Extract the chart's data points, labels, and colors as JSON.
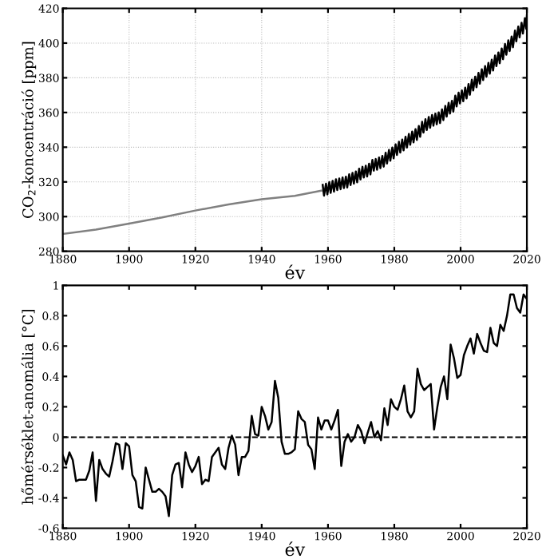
{
  "chart_data": [
    {
      "type": "line",
      "xlabel": "év",
      "ylabel": "CO$_{2}$-koncentráció [ppm]",
      "xlim": [
        1880,
        2020
      ],
      "ylim": [
        280,
        420
      ],
      "xticks": [
        1880,
        1900,
        1920,
        1940,
        1960,
        1980,
        2000,
        2020
      ],
      "yticks": [
        280,
        300,
        320,
        340,
        360,
        380,
        400,
        420
      ],
      "grid": true,
      "legend": false,
      "line_style": "solid",
      "series": [
        {
          "color": "#808080",
          "x": [
            1880,
            1890,
            1900,
            1910,
            1920,
            1930,
            1940,
            1950,
            1958
          ],
          "values": [
            290,
            292.5,
            296,
            299.5,
            303.5,
            307,
            310,
            312,
            315
          ]
        },
        {
          "color": "#000000",
          "x": [
            1958.4,
            1958.8,
            1959.4,
            1959.8,
            1960.4,
            1960.8,
            1961.4,
            1961.8,
            1962.4,
            1962.8,
            1963.4,
            1963.8,
            1964.4,
            1964.8,
            1965.4,
            1965.8,
            1966.4,
            1966.8,
            1967.4,
            1967.8,
            1968.4,
            1968.8,
            1969.4,
            1969.8,
            1970.4,
            1970.8,
            1971.4,
            1971.8,
            1972.4,
            1972.8,
            1973.4,
            1973.8,
            1974.4,
            1974.8,
            1975.4,
            1975.8,
            1976.4,
            1976.8,
            1977.4,
            1977.8,
            1978.4,
            1978.8,
            1979.4,
            1979.8,
            1980.4,
            1980.8,
            1981.4,
            1981.8,
            1982.4,
            1982.8,
            1983.4,
            1983.8,
            1984.4,
            1984.8,
            1985.4,
            1985.8,
            1986.4,
            1986.8,
            1987.4,
            1987.8,
            1988.4,
            1988.8,
            1989.4,
            1989.8,
            1990.4,
            1990.8,
            1991.4,
            1991.8,
            1992.4,
            1992.8,
            1993.4,
            1993.8,
            1994.4,
            1994.8,
            1995.4,
            1995.8,
            1996.4,
            1996.8,
            1997.4,
            1997.8,
            1998.4,
            1998.8,
            1999.4,
            1999.8,
            2000.4,
            2000.8,
            2001.4,
            2001.8,
            2002.4,
            2002.8,
            2003.4,
            2003.8,
            2004.4,
            2004.8,
            2005.4,
            2005.8,
            2006.4,
            2006.8,
            2007.4,
            2007.8,
            2008.4,
            2008.8,
            2009.4,
            2009.8,
            2010.4,
            2010.8,
            2011.4,
            2011.8,
            2012.4,
            2012.8,
            2013.4,
            2013.8,
            2014.4,
            2014.8,
            2015.4,
            2015.8,
            2016.4,
            2016.8,
            2017.4,
            2017.8,
            2018.4,
            2018.8,
            2019.4,
            2019.8,
            2020
          ],
          "values": [
            318.3,
            312.1,
            319.0,
            312.8,
            319.9,
            313.7,
            320.6,
            314.4,
            321.5,
            315.3,
            322.0,
            315.8,
            322.6,
            316.4,
            323.0,
            316.8,
            324.4,
            318.2,
            325.2,
            319.0,
            326.0,
            319.8,
            327.6,
            321.4,
            328.7,
            322.5,
            329.3,
            323.1,
            330.5,
            324.3,
            332.7,
            326.5,
            333.2,
            327.0,
            334.1,
            327.9,
            335.0,
            328.8,
            336.8,
            330.6,
            338.4,
            332.2,
            339.8,
            333.6,
            341.7,
            335.5,
            343.1,
            336.9,
            344.4,
            338.2,
            346.0,
            339.8,
            347.6,
            341.4,
            349.0,
            342.8,
            350.4,
            344.2,
            352.2,
            346.0,
            354.6,
            348.4,
            356.1,
            349.9,
            357.4,
            351.2,
            358.6,
            352.4,
            359.4,
            353.2,
            360.1,
            353.9,
            361.8,
            355.6,
            363.8,
            357.6,
            365.6,
            359.4,
            366.7,
            360.5,
            369.7,
            363.5,
            371.4,
            365.2,
            372.7,
            366.5,
            374.3,
            368.1,
            376.4,
            370.2,
            378.9,
            372.7,
            380.7,
            374.5,
            382.8,
            376.6,
            384.9,
            378.7,
            386.8,
            380.6,
            388.6,
            382.4,
            390.4,
            384.2,
            392.9,
            386.7,
            394.6,
            388.4,
            396.9,
            390.7,
            399.5,
            393.3,
            401.6,
            395.4,
            403.8,
            397.6,
            407.2,
            401.0,
            409.5,
            403.3,
            411.7,
            405.5,
            414.4,
            408.2,
            416
          ]
        }
      ]
    },
    {
      "type": "line",
      "xlabel": "év",
      "ylabel": "hőmérséklet-anomália [°C]",
      "xlim": [
        1880,
        2020
      ],
      "ylim": [
        -0.6,
        1
      ],
      "xticks": [
        1880,
        1900,
        1920,
        1940,
        1960,
        1980,
        2000,
        2020
      ],
      "yticks": [
        -0.6,
        -0.4,
        -0.2,
        0,
        0.2,
        0.4,
        0.6,
        0.8,
        1
      ],
      "grid": false,
      "legend": false,
      "line_style": "solid",
      "ref_lines": [
        {
          "axis": "y",
          "value": 0,
          "color": "#000000",
          "line_style": "dashed"
        }
      ],
      "series": [
        {
          "color": "#000000",
          "x": [
            1880,
            1881,
            1882,
            1883,
            1884,
            1885,
            1886,
            1887,
            1888,
            1889,
            1890,
            1891,
            1892,
            1893,
            1894,
            1895,
            1896,
            1897,
            1898,
            1899,
            1900,
            1901,
            1902,
            1903,
            1904,
            1905,
            1906,
            1907,
            1908,
            1909,
            1910,
            1911,
            1912,
            1913,
            1914,
            1915,
            1916,
            1917,
            1918,
            1919,
            1920,
            1921,
            1922,
            1923,
            1924,
            1925,
            1926,
            1927,
            1928,
            1929,
            1930,
            1931,
            1932,
            1933,
            1934,
            1935,
            1936,
            1937,
            1938,
            1939,
            1940,
            1941,
            1942,
            1943,
            1944,
            1945,
            1946,
            1947,
            1948,
            1949,
            1950,
            1951,
            1952,
            1953,
            1954,
            1955,
            1956,
            1957,
            1958,
            1959,
            1960,
            1961,
            1962,
            1963,
            1964,
            1965,
            1966,
            1967,
            1968,
            1969,
            1970,
            1971,
            1972,
            1973,
            1974,
            1975,
            1976,
            1977,
            1978,
            1979,
            1980,
            1981,
            1982,
            1983,
            1984,
            1985,
            1986,
            1987,
            1988,
            1989,
            1990,
            1991,
            1992,
            1993,
            1994,
            1995,
            1996,
            1997,
            1998,
            1999,
            2000,
            2001,
            2002,
            2003,
            2004,
            2005,
            2006,
            2007,
            2008,
            2009,
            2010,
            2011,
            2012,
            2013,
            2014,
            2015,
            2016,
            2017,
            2018,
            2019,
            2020
          ],
          "values": [
            -0.12,
            -0.18,
            -0.1,
            -0.15,
            -0.29,
            -0.28,
            -0.28,
            -0.28,
            -0.22,
            -0.1,
            -0.42,
            -0.15,
            -0.21,
            -0.24,
            -0.26,
            -0.16,
            -0.04,
            -0.05,
            -0.21,
            -0.04,
            -0.06,
            -0.25,
            -0.29,
            -0.46,
            -0.47,
            -0.2,
            -0.28,
            -0.36,
            -0.36,
            -0.34,
            -0.36,
            -0.39,
            -0.52,
            -0.25,
            -0.18,
            -0.17,
            -0.33,
            -0.1,
            -0.18,
            -0.23,
            -0.19,
            -0.13,
            -0.31,
            -0.28,
            -0.29,
            -0.13,
            -0.1,
            -0.07,
            -0.18,
            -0.21,
            -0.07,
            0.01,
            -0.05,
            -0.25,
            -0.13,
            -0.13,
            -0.09,
            0.14,
            0.02,
            0.01,
            0.2,
            0.14,
            0.05,
            0.1,
            0.37,
            0.26,
            -0.03,
            -0.11,
            -0.11,
            -0.1,
            -0.08,
            0.17,
            0.12,
            0.1,
            -0.05,
            -0.08,
            -0.21,
            0.13,
            0.05,
            0.11,
            0.11,
            0.05,
            0.11,
            0.18,
            -0.19,
            -0.03,
            0.02,
            -0.03,
            0.0,
            0.08,
            0.04,
            -0.04,
            0.03,
            0.1,
            0.0,
            0.04,
            -0.02,
            0.19,
            0.08,
            0.25,
            0.2,
            0.18,
            0.25,
            0.34,
            0.17,
            0.13,
            0.17,
            0.45,
            0.35,
            0.31,
            0.33,
            0.35,
            0.05,
            0.2,
            0.33,
            0.4,
            0.25,
            0.61,
            0.52,
            0.39,
            0.41,
            0.54,
            0.6,
            0.65,
            0.55,
            0.68,
            0.62,
            0.57,
            0.56,
            0.72,
            0.62,
            0.6,
            0.74,
            0.7,
            0.8,
            0.94,
            0.94,
            0.85,
            0.82,
            0.94,
            0.91
          ]
        }
      ]
    }
  ]
}
